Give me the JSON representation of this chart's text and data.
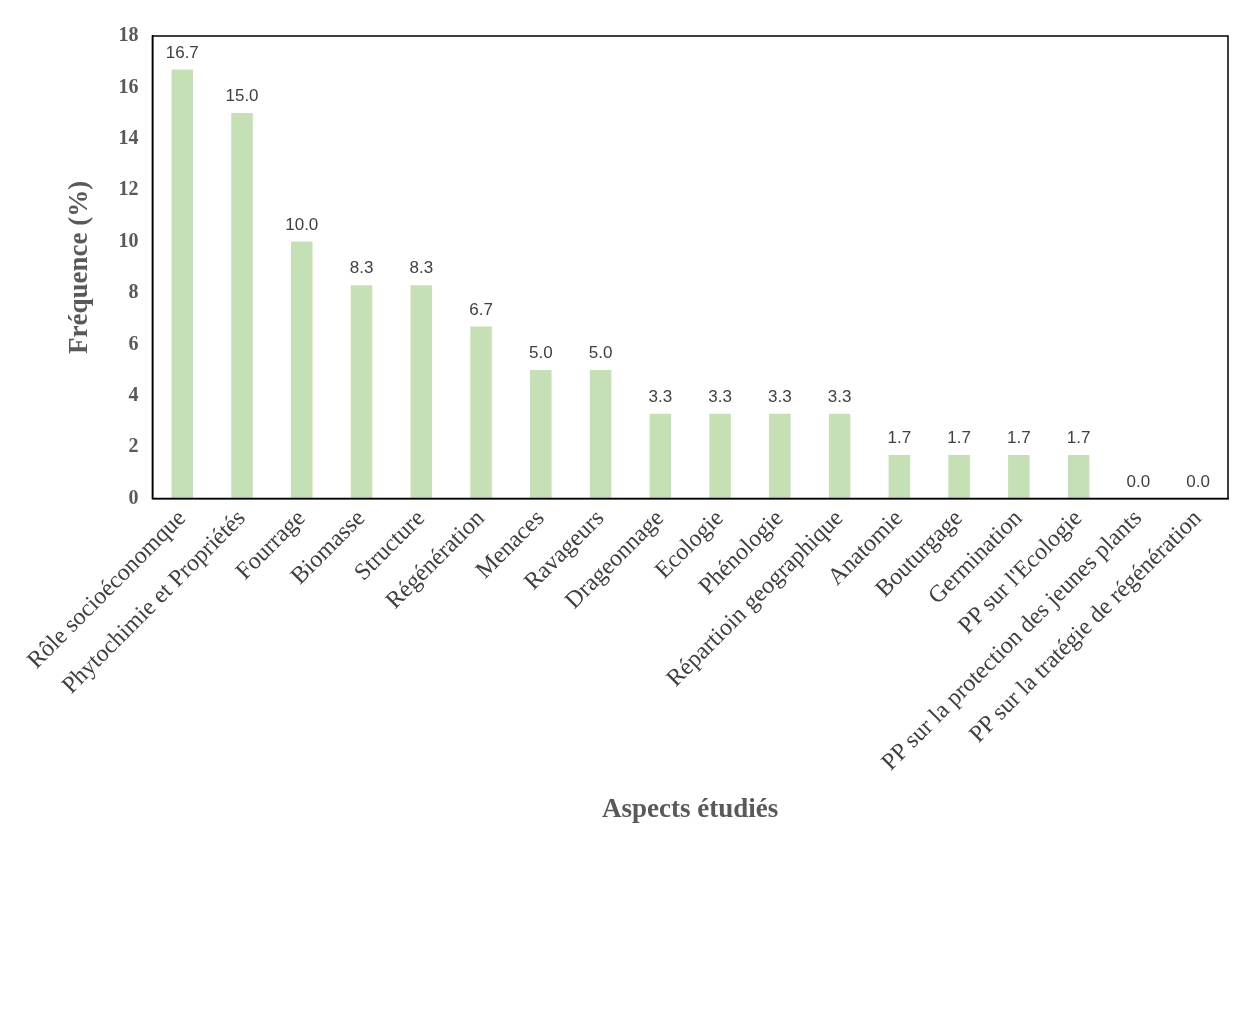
{
  "chart_data": {
    "type": "bar",
    "xlabel": "Aspects étudiés",
    "ylabel": "Fréquence (%)",
    "categories": [
      "Rôle socioéconomque",
      "Phytochimie et Propriétés",
      "Fourrage",
      "Biomasse",
      "Structure",
      "Régénération",
      "Menaces",
      "Ravageurs",
      "Drageonnage",
      "Ecologie",
      "Phénologie",
      "Répartioin geographique",
      "Anatomie",
      "Bouturgage",
      "Germination",
      "PP sur l'Ecologie",
      "PP sur la protection des jeunes plants",
      "PP sur la tratégie de régénération"
    ],
    "values": [
      16.7,
      15.0,
      10.0,
      8.3,
      8.3,
      6.7,
      5.0,
      5.0,
      3.3,
      3.3,
      3.3,
      3.3,
      1.7,
      1.7,
      1.7,
      1.7,
      0.0,
      0.0
    ],
    "value_labels": [
      "16.7",
      "15.0",
      "10.0",
      "8.3",
      "8.3",
      "6.7",
      "5.0",
      "5.0",
      "3.3",
      "3.3",
      "3.3",
      "3.3",
      "1.7",
      "1.7",
      "1.7",
      "1.7",
      "0.0",
      "0.0"
    ],
    "color": "#c5e0b4",
    "ylim": [
      0,
      18
    ],
    "yticks": [
      0,
      2,
      4,
      6,
      8,
      10,
      12,
      14,
      16,
      18
    ],
    "grid": false,
    "legend": false
  }
}
